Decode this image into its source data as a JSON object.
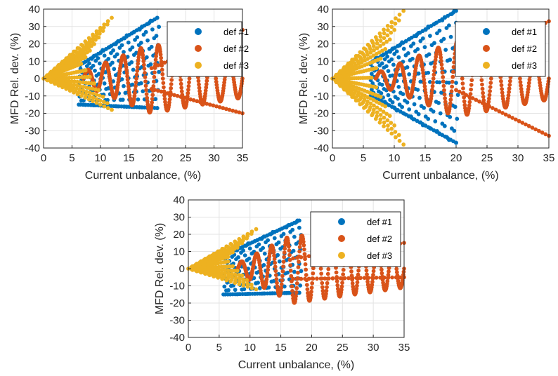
{
  "chart_data": [
    {
      "type": "scatter",
      "xlabel": "Current unbalance, (%)",
      "ylabel": "MFD Rel. dev. (%)",
      "xlim": [
        0,
        35
      ],
      "ylim": [
        -40,
        40
      ],
      "xticks": [
        "0",
        "5",
        "10",
        "15",
        "20",
        "25",
        "30",
        "35"
      ],
      "yticks": [
        "40",
        "30",
        "20",
        "10",
        "0",
        "-10",
        "-20",
        "-30",
        "-40"
      ],
      "grid": true,
      "legend_position": "top-right",
      "series": [
        {
          "name": "def #1",
          "color": "#0072BD",
          "envelope": {
            "x_start": 6.5,
            "x_end": 20,
            "upper_start": 8,
            "upper_end": 35,
            "lower_start": -15,
            "lower_end": -17,
            "rows": 10,
            "cols": 16
          }
        },
        {
          "name": "def #2",
          "color": "#D95319",
          "zigzag": {
            "x_start": 7,
            "x_end": 35,
            "amp_start": 4,
            "amp_peak": 20,
            "x_peak": 19,
            "tail_top": 28,
            "tail_bottom": -20,
            "cycles": 9
          }
        },
        {
          "name": "def #3",
          "color": "#EDB120",
          "fan": {
            "x_start": 0,
            "x_end": 12,
            "upper_end": 35,
            "lower_end": -18,
            "x_max_lower": 12,
            "rows": 14,
            "cols": 18
          }
        }
      ]
    },
    {
      "type": "scatter",
      "xlabel": "Current unbalance, (%)",
      "ylabel": "MFD Rel. dev. (%)",
      "xlim": [
        0,
        35
      ],
      "ylim": [
        -40,
        40
      ],
      "xticks": [
        "0",
        "5",
        "10",
        "15",
        "20",
        "25",
        "30",
        "35"
      ],
      "yticks": [
        "40",
        "30",
        "20",
        "10",
        "0",
        "-10",
        "-20",
        "-30",
        "-40"
      ],
      "grid": true,
      "legend_position": "top-right",
      "series": [
        {
          "name": "def #1",
          "color": "#0072BD",
          "envelope": {
            "x_start": 6.5,
            "x_end": 20,
            "upper_start": 10,
            "upper_end": 39,
            "lower_start": -10,
            "lower_end": -37,
            "rows": 11,
            "cols": 16
          }
        },
        {
          "name": "def #2",
          "color": "#D95319",
          "zigzag": {
            "x_start": 7,
            "x_end": 35,
            "amp_start": 3,
            "amp_peak": 22,
            "x_peak": 20,
            "tail_top": 33,
            "tail_bottom": -33,
            "cycles": 9
          }
        },
        {
          "name": "def #3",
          "color": "#EDB120",
          "fan": {
            "x_start": 0,
            "x_end": 11.5,
            "upper_end": 39,
            "lower_end": -38,
            "x_max_lower": 11.5,
            "rows": 14,
            "cols": 18
          }
        }
      ]
    },
    {
      "type": "scatter",
      "xlabel": "Current unbalance, (%)",
      "ylabel": "MFD Rel. dev. (%)",
      "xlim": [
        0,
        35
      ],
      "ylim": [
        -40,
        40
      ],
      "xticks": [
        "0",
        "5",
        "10",
        "15",
        "20",
        "25",
        "30",
        "35"
      ],
      "yticks": [
        "40",
        "30",
        "20",
        "10",
        "0",
        "-10",
        "-20",
        "-30",
        "-40"
      ],
      "grid": true,
      "legend_position": "top-right",
      "series": [
        {
          "name": "def #1",
          "color": "#0072BD",
          "envelope": {
            "x_start": 6,
            "x_end": 18,
            "upper_start": 8,
            "upper_end": 28,
            "lower_start": -15,
            "lower_end": -14,
            "rows": 10,
            "cols": 15
          }
        },
        {
          "name": "def #2",
          "color": "#D95319",
          "zigzag": {
            "x_start": 8,
            "x_end": 35,
            "amp_start": 3,
            "amp_peak": 20,
            "x_peak": 17,
            "tail_top": 15,
            "tail_bottom": -5,
            "cycles": 11
          }
        },
        {
          "name": "def #3",
          "color": "#EDB120",
          "fan": {
            "x_start": 0,
            "x_end": 11,
            "upper_end": 23,
            "lower_end": -12,
            "x_max_lower": 11,
            "rows": 13,
            "cols": 16
          }
        }
      ]
    }
  ]
}
